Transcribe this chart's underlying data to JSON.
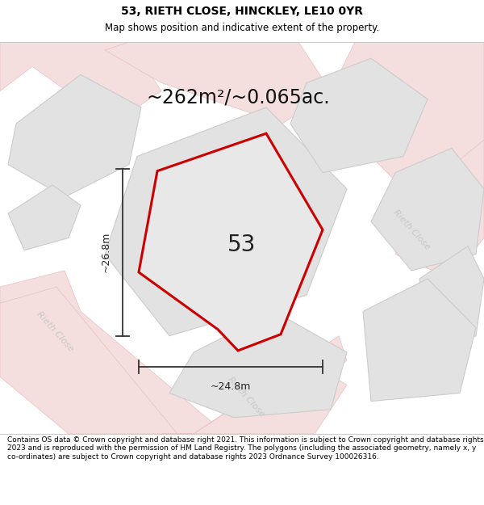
{
  "title": "53, RIETH CLOSE, HINCKLEY, LE10 0YR",
  "subtitle": "Map shows position and indicative extent of the property.",
  "area_text": "~262m²/~0.065ac.",
  "number_label": "53",
  "dim_width": "~24.8m",
  "dim_height": "~26.8m",
  "footer_text": "Contains OS data © Crown copyright and database right 2021. This information is subject to Crown copyright and database rights 2023 and is reproduced with the permission of HM Land Registry. The polygons (including the associated geometry, namely x, y co-ordinates) are subject to Crown copyright and database rights 2023 Ordnance Survey 100026316.",
  "map_bg": "#f0f0f0",
  "block_fill": "#e2e2e2",
  "block_edge": "#cccccc",
  "road_fill": "#f7f7f7",
  "pink_road_fill": "#f5dede",
  "pink_road_edge": "#e8c0c0",
  "plot_fill": "#e8e8e8",
  "plot_edge": "#cc0000",
  "dim_color": "#333333",
  "street_color": "#c8c8c8",
  "title_size": 10,
  "subtitle_size": 8.5,
  "area_size": 17,
  "label_size": 20,
  "dim_text_size": 9,
  "street_size": 8,
  "footer_size": 6.5
}
